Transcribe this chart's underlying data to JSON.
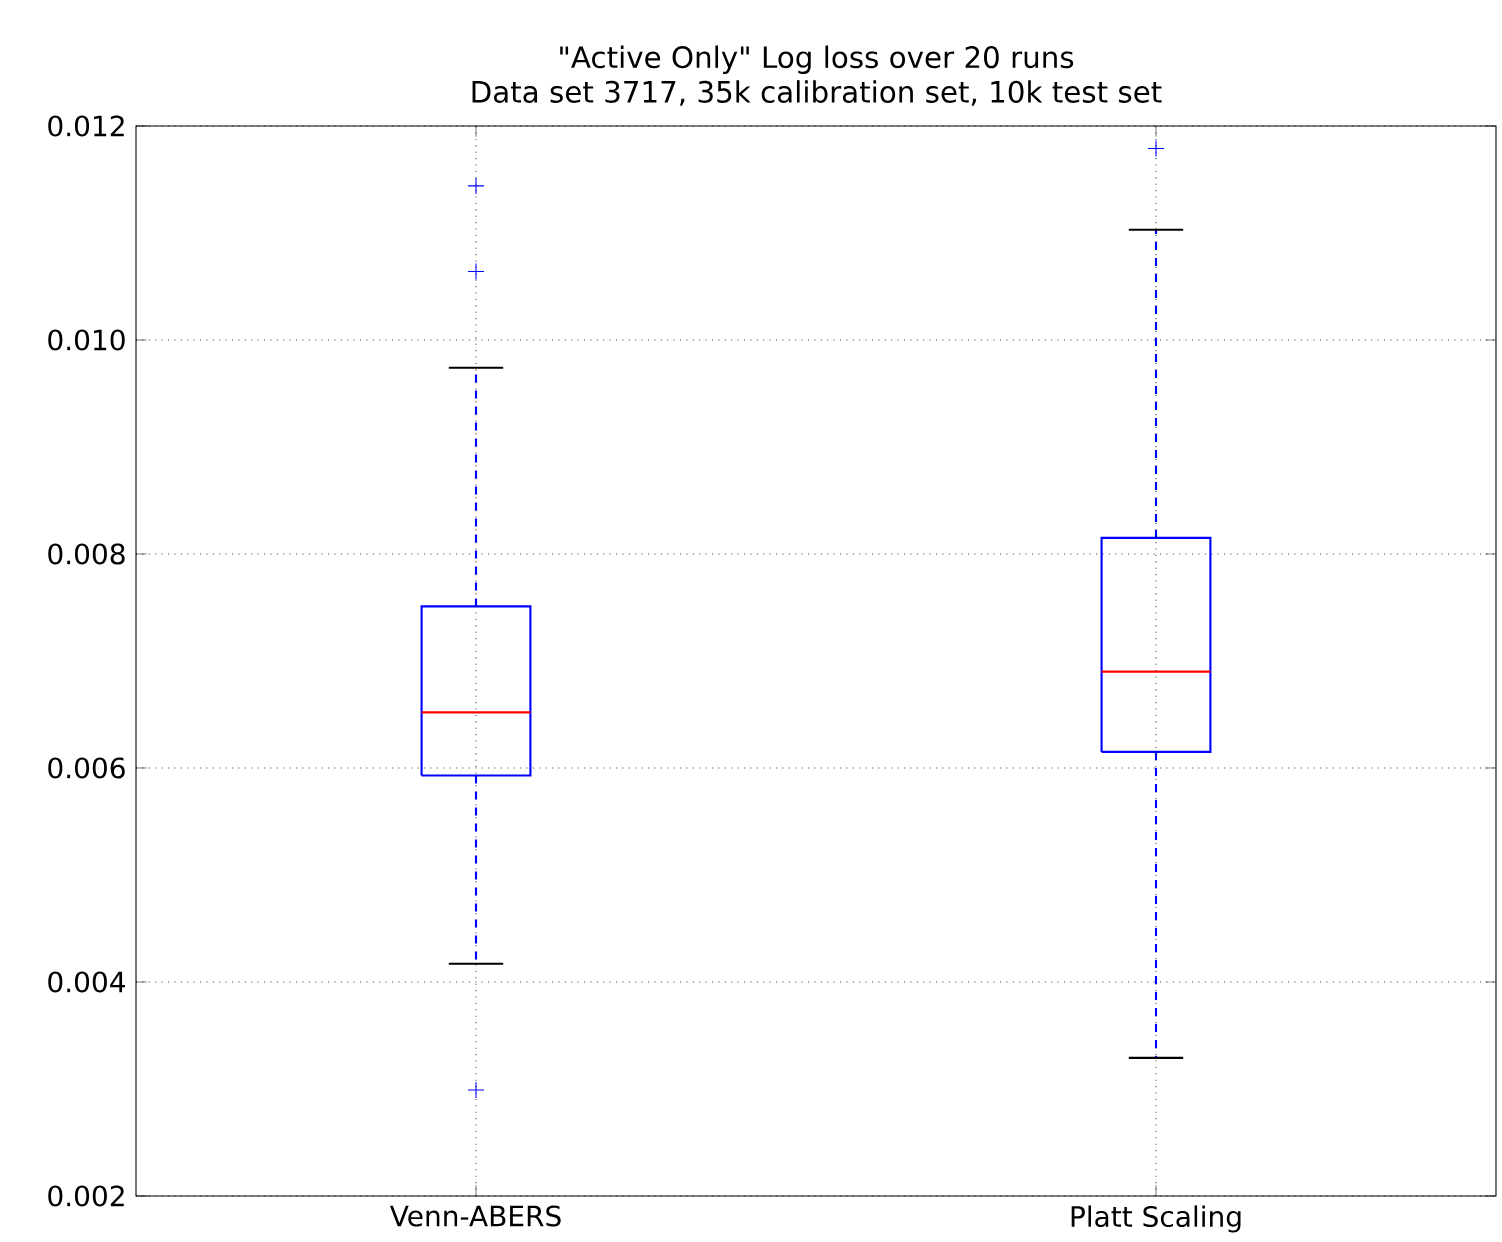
{
  "chart_data": {
    "type": "box",
    "title": "\"Active Only\" Log loss over 20 runs",
    "subtitle": "Data set 3717, 35k calibration set, 10k test set",
    "categories": [
      "Venn-ABERS",
      "Platt Scaling"
    ],
    "color": "#0000ff",
    "grid": true,
    "line_style": "dashed",
    "boxes": [
      {
        "low": 0.00417,
        "q1": 0.00593,
        "median": 0.00652,
        "q3": 0.00751,
        "high": 0.00974,
        "outliers": [
          0.01144,
          0.01064,
          0.00299
        ]
      },
      {
        "low": 0.00329,
        "q1": 0.00615,
        "median": 0.0069,
        "q3": 0.00815,
        "high": 0.01103,
        "outliers": [
          0.01179
        ]
      }
    ],
    "ylim": [
      0.002,
      0.012
    ],
    "yticks": [
      {
        "value": 0.002,
        "label": "0.002"
      },
      {
        "value": 0.004,
        "label": "0.004"
      },
      {
        "value": 0.006,
        "label": "0.006"
      },
      {
        "value": 0.008,
        "label": "0.008"
      },
      {
        "value": 0.01,
        "label": "0.010"
      },
      {
        "value": 0.012,
        "label": "0.012"
      }
    ]
  }
}
